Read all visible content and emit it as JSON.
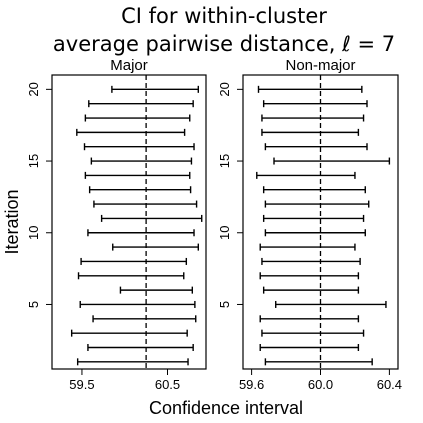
{
  "chart_data": {
    "type": "interval",
    "title_lines": [
      "CI for within-cluster",
      "average pairwise distance, ℓ = 7"
    ],
    "xlabel": "Confidence interval",
    "ylabel": "Iteration",
    "panels": [
      {
        "name": "Major",
        "xlim": [
          59.15,
          60.95
        ],
        "xticks": [
          59.5,
          60.5
        ],
        "xtick_labels": [
          "59.5",
          "60.5"
        ],
        "reference_x": 60.25,
        "yticks": [
          5,
          10,
          15,
          20
        ],
        "ylim": [
          0.5,
          21.0
        ],
        "iterations": [
          1,
          2,
          3,
          4,
          5,
          6,
          7,
          8,
          9,
          10,
          11,
          12,
          13,
          14,
          15,
          16,
          17,
          18,
          19,
          20
        ],
        "lower": [
          59.45,
          59.57,
          59.38,
          59.63,
          59.48,
          59.95,
          59.46,
          59.49,
          59.86,
          59.57,
          59.73,
          59.64,
          59.59,
          59.54,
          59.61,
          59.53,
          59.44,
          59.54,
          59.58,
          59.85
        ],
        "upper": [
          60.74,
          60.8,
          60.73,
          60.83,
          60.82,
          60.79,
          60.69,
          60.72,
          60.86,
          60.81,
          60.9,
          60.84,
          60.77,
          60.76,
          60.78,
          60.81,
          60.7,
          60.76,
          60.8,
          60.86
        ]
      },
      {
        "name": "Non-major",
        "xlim": [
          59.55,
          60.45
        ],
        "xticks": [
          59.6,
          60.0,
          60.4
        ],
        "xtick_labels": [
          "59.6",
          "60.0",
          "60.4"
        ],
        "reference_x": 60.0,
        "yticks": [
          5,
          10,
          15,
          20
        ],
        "ylim": [
          0.5,
          21.0
        ],
        "iterations": [
          1,
          2,
          3,
          4,
          5,
          6,
          7,
          8,
          9,
          10,
          11,
          12,
          13,
          14,
          15,
          16,
          17,
          18,
          19,
          20
        ],
        "lower": [
          59.68,
          59.65,
          59.66,
          59.65,
          59.74,
          59.67,
          59.65,
          59.66,
          59.65,
          59.68,
          59.67,
          59.68,
          59.67,
          59.63,
          59.73,
          59.68,
          59.66,
          59.66,
          59.67,
          59.64
        ],
        "upper": [
          60.3,
          60.22,
          60.25,
          60.22,
          60.38,
          60.22,
          60.22,
          60.23,
          60.2,
          60.26,
          60.25,
          60.28,
          60.26,
          60.2,
          60.4,
          60.27,
          60.22,
          60.25,
          60.27,
          60.24
        ]
      }
    ]
  }
}
